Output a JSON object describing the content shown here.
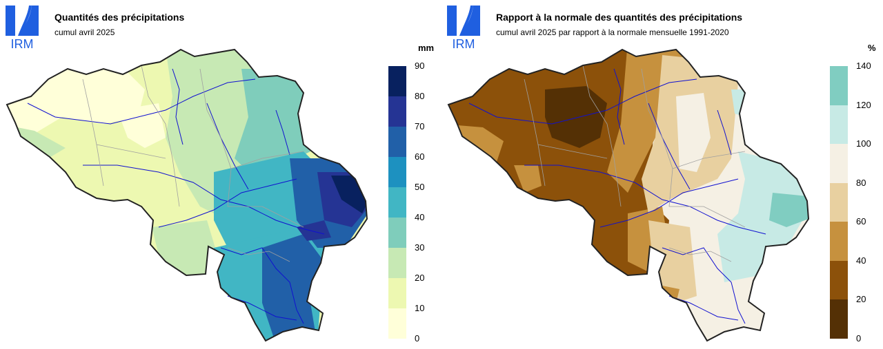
{
  "panels": [
    {
      "id": "precipitation",
      "logo_text": "IRM",
      "title": "Quantités des précipitations",
      "subtitle": "cumul avril 2025",
      "unit": "mm",
      "legend": {
        "ticks": [
          "90",
          "80",
          "70",
          "60",
          "50",
          "40",
          "30",
          "20",
          "10",
          "0"
        ],
        "colors": [
          "#08215f",
          "#253494",
          "#2160a8",
          "#1d91c0",
          "#41b6c4",
          "#7fcdbb",
          "#c7e9b4",
          "#edf8b1",
          "#ffffd9"
        ]
      }
    },
    {
      "id": "ratio",
      "logo_text": "IRM",
      "title": "Rapport à la normale des quantités des précipitations",
      "subtitle": "cumul avril 2025 par rapport à la normale mensuelle 1991-2020",
      "unit": "%",
      "legend": {
        "ticks": [
          "140",
          "120",
          "100",
          "80",
          "60",
          "40",
          "20",
          "0"
        ],
        "colors": [
          "#80cdc1",
          "#c7eae5",
          "#f5f0e4",
          "#e8d0a0",
          "#c6913e",
          "#8c510a",
          "#543005"
        ]
      }
    }
  ]
}
